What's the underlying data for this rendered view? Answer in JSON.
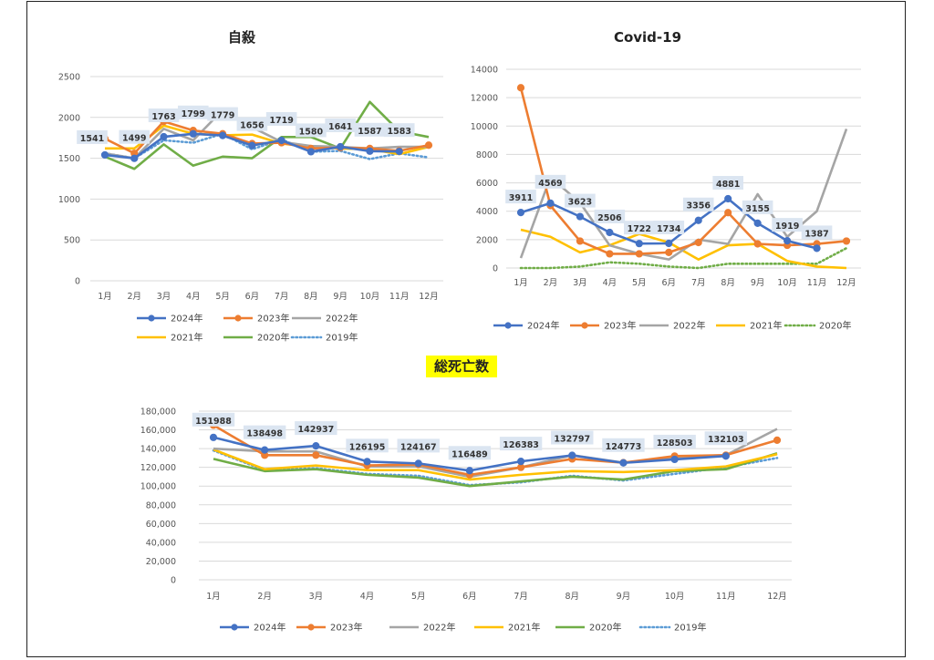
{
  "colors": {
    "2024年": "#4472C4",
    "2023年": "#ED7D31",
    "2022年": "#A5A5A5",
    "2021年": "#FFC000",
    "2020年": "#70AD47",
    "2019年": "#5B9BD5",
    "grid": "#d9d9d9",
    "label_bg": "#dbe5f1",
    "title_highlight": "#ffff00"
  },
  "chart_data": [
    {
      "type": "line",
      "title": "自殺",
      "categories": [
        "1月",
        "2月",
        "3月",
        "4月",
        "5月",
        "6月",
        "7月",
        "8月",
        "9月",
        "10月",
        "11月",
        "12月"
      ],
      "ylim": [
        0,
        2500
      ],
      "yticks": [
        "0",
        "500",
        "1000",
        "1500",
        "2000",
        "2500"
      ],
      "grid": true,
      "legend_position": "bottom",
      "series": [
        {
          "name": "2024年",
          "values": [
            1541,
            1499,
            1763,
            1799,
            1779,
            1656,
            1719,
            1580,
            1641,
            1587,
            1583,
            null
          ],
          "marker": true,
          "data_labels": true
        },
        {
          "name": "2023年",
          "values": [
            1740,
            1560,
            1950,
            1840,
            1800,
            1680,
            1690,
            1620,
            1630,
            1620,
            1590,
            1660
          ],
          "marker": true,
          "data_labels": false
        },
        {
          "name": "2022年",
          "values": [
            1560,
            1500,
            1860,
            1720,
            2090,
            1880,
            1700,
            1650,
            1640,
            1620,
            1640,
            1640
          ],
          "marker": false,
          "data_labels": false
        },
        {
          "name": "2021年",
          "values": [
            1620,
            1620,
            1900,
            1800,
            1780,
            1790,
            1680,
            1640,
            1620,
            1610,
            1550,
            1640
          ],
          "marker": false,
          "data_labels": false
        },
        {
          "name": "2020年",
          "values": [
            1520,
            1370,
            1670,
            1410,
            1520,
            1500,
            1760,
            1760,
            1620,
            2190,
            1830,
            1760
          ],
          "marker": false,
          "data_labels": false
        },
        {
          "name": "2019年",
          "values": [
            1560,
            1500,
            1720,
            1690,
            1800,
            1610,
            1730,
            1580,
            1590,
            1490,
            1560,
            1510
          ],
          "marker": false,
          "dotted": true,
          "data_labels": false
        }
      ],
      "data_labels": [
        "1541",
        "1499",
        "1763",
        "1799",
        "1779",
        "1656",
        "1719",
        "1580",
        "1641",
        "1587",
        "1583"
      ]
    },
    {
      "type": "line",
      "title": "Covid-19",
      "categories": [
        "1月",
        "2月",
        "3月",
        "4月",
        "5月",
        "6月",
        "7月",
        "8月",
        "9月",
        "10月",
        "11月",
        "12月"
      ],
      "ylim": [
        0,
        14000
      ],
      "yticks": [
        "0",
        "2000",
        "4000",
        "6000",
        "8000",
        "10000",
        "12000",
        "14000"
      ],
      "grid": true,
      "legend_position": "bottom",
      "series": [
        {
          "name": "2024年",
          "values": [
            3911,
            4569,
            3623,
            2506,
            1722,
            1734,
            3356,
            4881,
            3155,
            1919,
            1387,
            null
          ],
          "marker": true,
          "data_labels": true
        },
        {
          "name": "2023年",
          "values": [
            12700,
            4400,
            1900,
            1000,
            1000,
            1100,
            1800,
            3900,
            1700,
            1600,
            1700,
            1900
          ],
          "marker": true,
          "data_labels": false
        },
        {
          "name": "2022年",
          "values": [
            700,
            6400,
            4600,
            1600,
            1000,
            600,
            2000,
            1700,
            5200,
            2200,
            4000,
            9800
          ],
          "marker": false,
          "data_labels": false
        },
        {
          "name": "2021年",
          "values": [
            2700,
            2200,
            1100,
            1600,
            2400,
            1800,
            600,
            1600,
            1700,
            500,
            100,
            0
          ],
          "marker": false,
          "data_labels": false
        },
        {
          "name": "2020年",
          "values": [
            0,
            0,
            100,
            400,
            300,
            100,
            0,
            300,
            300,
            300,
            300,
            1400
          ],
          "marker": false,
          "dotted": true,
          "data_labels": false
        }
      ],
      "data_labels": [
        "3911",
        "4569",
        "3623",
        "2506",
        "1722",
        "1734",
        "3356",
        "4881",
        "3155",
        "1919",
        "1387"
      ]
    },
    {
      "type": "line",
      "title": "総死亡数",
      "categories": [
        "1月",
        "2月",
        "3月",
        "4月",
        "5月",
        "6月",
        "7月",
        "8月",
        "9月",
        "10月",
        "11月",
        "12月"
      ],
      "ylim": [
        0,
        180000
      ],
      "yticks": [
        "0",
        "20,000",
        "40,000",
        "60,000",
        "80,000",
        "100,000",
        "120,000",
        "140,000",
        "160,000",
        "180,000"
      ],
      "grid": true,
      "legend_position": "bottom",
      "series": [
        {
          "name": "2024年",
          "values": [
            151988,
            138498,
            142937,
            126195,
            124167,
            116489,
            126383,
            132797,
            124773,
            128503,
            132103,
            null
          ],
          "marker": true,
          "data_labels": true
        },
        {
          "name": "2023年",
          "values": [
            165000,
            133000,
            133000,
            122000,
            123000,
            112000,
            120000,
            129000,
            125000,
            132000,
            133000,
            149000
          ],
          "marker": true,
          "data_labels": false
        },
        {
          "name": "2022年",
          "values": [
            140000,
            137000,
            137000,
            121000,
            121000,
            110000,
            120000,
            133000,
            125000,
            131000,
            133000,
            161000
          ],
          "marker": false,
          "data_labels": false
        },
        {
          "name": "2021年",
          "values": [
            139000,
            118000,
            122000,
            117000,
            117000,
            107000,
            112000,
            116000,
            115000,
            117000,
            121000,
            134000
          ],
          "marker": false,
          "data_labels": false
        },
        {
          "name": "2020年",
          "values": [
            129000,
            116000,
            118000,
            112000,
            109000,
            100000,
            105000,
            110000,
            107000,
            116000,
            118000,
            135000
          ],
          "marker": false,
          "data_labels": false
        },
        {
          "name": "2019年",
          "values": [
            138000,
            117000,
            119000,
            113000,
            111000,
            101000,
            104000,
            111000,
            106000,
            113000,
            120000,
            130000
          ],
          "marker": false,
          "dotted": true,
          "data_labels": false
        }
      ],
      "data_labels": [
        "151988",
        "138498",
        "142937",
        "126195",
        "124167",
        "116489",
        "126383",
        "132797",
        "124773",
        "128503",
        "132103"
      ]
    }
  ]
}
